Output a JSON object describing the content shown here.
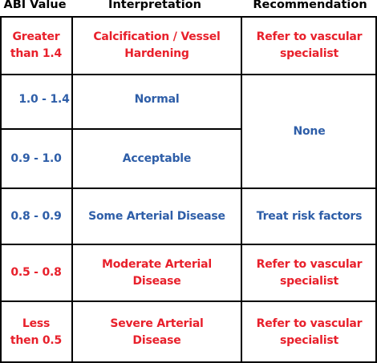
{
  "headers": {
    "abi": "ABI Value",
    "interpretation": "Interpretation",
    "recommendation": "Recommendation"
  },
  "rows": [
    {
      "abi": "Greater\nthan 1.4",
      "interpretation": "Calcification / Vessel\nHardening",
      "recommendation": "Refer to vascular\nspecialist",
      "color": "#e8202b"
    },
    {
      "abi": "1.0 - 1.4",
      "interpretation": "Normal",
      "color": "#2e5ea8"
    },
    {
      "abi": "0.9 - 1.0",
      "interpretation": "Acceptable",
      "color": "#2e5ea8"
    },
    {
      "abi": "0.8 - 0.9",
      "interpretation": "Some Arterial Disease",
      "recommendation": "Treat risk factors",
      "color": "#2e5ea8"
    },
    {
      "abi": "0.5 - 0.8",
      "interpretation": "Moderate Arterial\nDisease",
      "recommendation": "Refer to vascular\nspecialist",
      "color": "#e8202b"
    },
    {
      "abi": "Less\nthen 0.5",
      "interpretation": "Severe Arterial\nDisease",
      "recommendation": "Refer to vascular\nspecialist",
      "color": "#e8202b"
    }
  ],
  "merged_recommendation": "None"
}
